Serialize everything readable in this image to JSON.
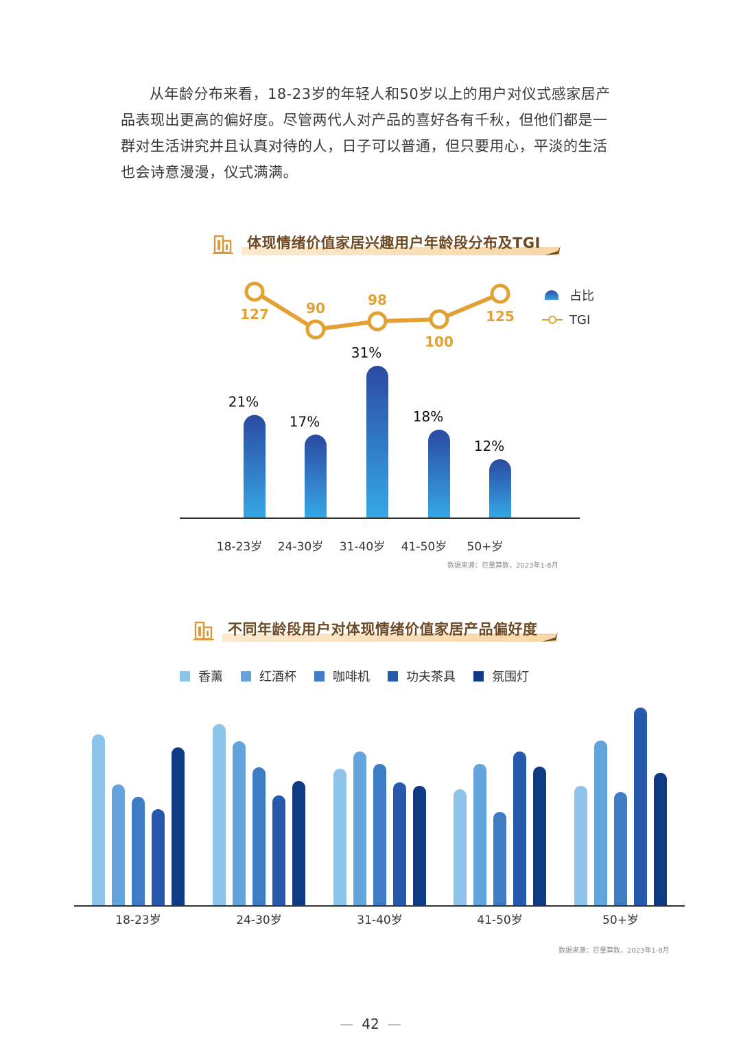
{
  "intro_text": "从年龄分布来看，18-23岁的年轻人和50岁以上的用户对仪式感家居产品表现出更高的偏好度。尽管两代人对产品的喜好各有千秋，但他们都是一群对生活讲究并且认真对待的人，日子可以普通，但只要用心，平淡的生活也会诗意漫漫，仪式满满。",
  "colors": {
    "tgi_line": "#e3a133",
    "bar_top": "#2b4aa2",
    "bar_bottom": "#36a8e6",
    "title_text": "#6e4a24",
    "series": [
      "#8ec3ea",
      "#62a4db",
      "#3f7cc6",
      "#2459ad",
      "#0f3a84"
    ]
  },
  "chart1": {
    "title": "体现情绪价值家居兴趣用户年龄段分布及TGI",
    "legend": {
      "share": "占比",
      "tgi": "TGI"
    },
    "source": "数据来源：巨量算数，2023年1-8月"
  },
  "chart2": {
    "title": "不同年龄段用户对体现情绪价值家居产品偏好度",
    "source": "数据来源：巨量算数，2023年1-8月"
  },
  "page_number": "42",
  "chart_data": [
    {
      "type": "bar",
      "title": "体现情绪价值家居兴趣用户年龄段分布及TGI",
      "categories": [
        "18-23岁",
        "24-30岁",
        "31-40岁",
        "41-50岁",
        "50+岁"
      ],
      "series": [
        {
          "name": "占比",
          "type": "bar",
          "values": [
            21,
            17,
            31,
            18,
            12
          ],
          "labels": [
            "21%",
            "17%",
            "31%",
            "18%",
            "12%"
          ]
        },
        {
          "name": "TGI",
          "type": "line",
          "values": [
            127,
            90,
            98,
            100,
            125
          ]
        }
      ],
      "ylim": [
        0,
        32
      ],
      "source": "数据来源：巨量算数，2023年1-8月"
    },
    {
      "type": "bar",
      "title": "不同年龄段用户对体现情绪价值家居产品偏好度",
      "categories": [
        "18-23岁",
        "24-30岁",
        "31-40岁",
        "41-50岁",
        "50+岁"
      ],
      "series": [
        {
          "name": "香薰",
          "values": [
            250,
            265,
            200,
            170,
            175
          ]
        },
        {
          "name": "红酒杯",
          "values": [
            177,
            240,
            225,
            207,
            241
          ]
        },
        {
          "name": "咖啡机",
          "values": [
            159,
            202,
            207,
            137,
            166
          ]
        },
        {
          "name": "功夫茶具",
          "values": [
            141,
            161,
            180,
            225,
            289
          ]
        },
        {
          "name": "氛围灯",
          "values": [
            231,
            182,
            175,
            203,
            194
          ]
        }
      ],
      "ylim": [
        0,
        300
      ],
      "grid": false,
      "legend": "top",
      "source": "数据来源：巨量算数，2023年1-8月"
    }
  ]
}
